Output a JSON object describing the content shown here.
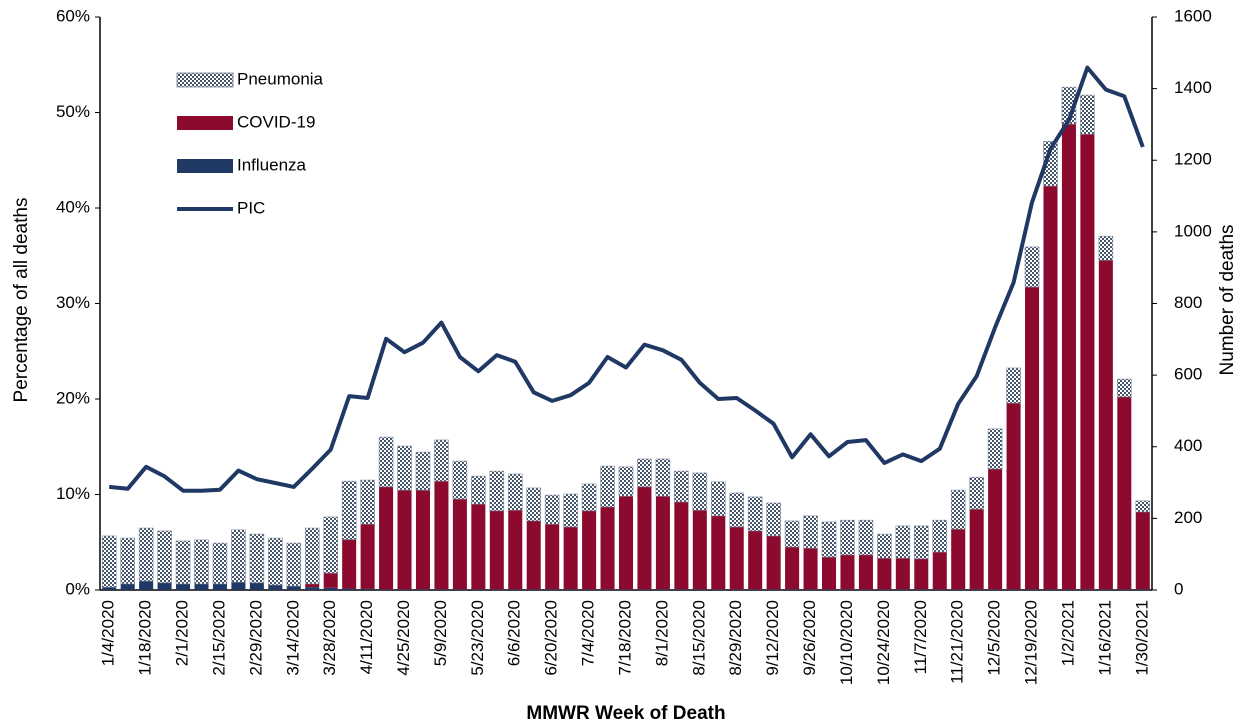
{
  "chart_data": {
    "type": "bar",
    "stacked": true,
    "x_label": "MMWR Week of Death",
    "y_label": "Percentage of all deaths",
    "y2_label": "Number of deaths",
    "categories": [
      "1/4/2020",
      null,
      "1/18/2020",
      null,
      "2/1/2020",
      null,
      "2/15/2020",
      null,
      "2/29/2020",
      null,
      "3/14/2020",
      null,
      "3/28/2020",
      null,
      "4/11/2020",
      null,
      "4/25/2020",
      null,
      "5/9/2020",
      null,
      "5/23/2020",
      null,
      "6/6/2020",
      null,
      "6/20/2020",
      null,
      "7/4/2020",
      null,
      "7/18/2020",
      null,
      "8/1/2020",
      null,
      "8/15/2020",
      null,
      "8/29/2020",
      null,
      "9/12/2020",
      null,
      "9/26/2020",
      null,
      "10/10/2020",
      null,
      "10/24/2020",
      null,
      "11/7/2020",
      null,
      "11/21/2020",
      null,
      "12/5/2020",
      null,
      "12/19/2020",
      null,
      "1/2/2021",
      null,
      "1/16/2021",
      null,
      "1/30/2021"
    ],
    "series": [
      {
        "name": "Influenza",
        "type": "bar",
        "axis": "y2",
        "color": "#1f3864",
        "values": [
          8,
          17,
          25,
          20,
          17,
          17,
          17,
          22,
          20,
          14,
          11,
          8,
          6,
          4,
          3,
          2,
          2,
          2,
          2,
          2,
          2,
          2,
          2,
          2,
          2,
          2,
          2,
          2,
          2,
          2,
          2,
          2,
          2,
          2,
          2,
          2,
          2,
          2,
          2,
          2,
          2,
          2,
          2,
          2,
          2,
          2,
          2,
          2,
          2,
          2,
          2,
          2,
          2,
          2,
          2,
          2,
          2
        ]
      },
      {
        "name": "COVID-19",
        "type": "bar",
        "axis": "y2",
        "color": "#8b0a2e",
        "values": [
          0,
          0,
          0,
          0,
          0,
          0,
          0,
          0,
          0,
          0,
          0,
          9,
          41,
          137,
          181,
          286,
          277,
          277,
          302,
          252,
          238,
          219,
          221,
          191,
          182,
          174,
          219,
          230,
          260,
          286,
          260,
          244,
          221,
          205,
          174,
          163,
          149,
          118,
          115,
          90,
          96,
          96,
          87,
          87,
          85,
          104,
          168,
          224,
          336,
          520,
          844,
          1126,
          1299,
          1271,
          919,
          537,
          216
        ]
      },
      {
        "name": "Pneumonia",
        "type": "bar",
        "axis": "y2",
        "color": "#44546a",
        "pattern": "checker",
        "values": [
          143,
          128,
          148,
          145,
          120,
          123,
          114,
          146,
          136,
          131,
          120,
          156,
          157,
          163,
          123,
          139,
          123,
          106,
          115,
          106,
          78,
          111,
          101,
          92,
          81,
          92,
          75,
          114,
          82,
          78,
          104,
          86,
          104,
          95,
          95,
          95,
          92,
          73,
          90,
          98,
          97,
          97,
          67,
          90,
          92,
          89,
          109,
          89,
          112,
          98,
          112,
          125,
          103,
          109,
          67,
          50,
          31
        ]
      },
      {
        "name": "PIC",
        "type": "line",
        "axis": "y",
        "color": "#1f3864",
        "values": [
          10.8,
          10.6,
          12.9,
          11.9,
          10.4,
          10.4,
          10.5,
          12.5,
          11.6,
          11.2,
          10.8,
          12.7,
          14.7,
          20.3,
          20.1,
          26.3,
          24.9,
          25.9,
          28.0,
          24.4,
          22.9,
          24.6,
          23.9,
          20.7,
          19.8,
          20.4,
          21.7,
          24.4,
          23.3,
          25.7,
          25.1,
          24.1,
          21.7,
          20.0,
          20.1,
          18.8,
          17.4,
          13.9,
          16.3,
          14.0,
          15.5,
          15.7,
          13.3,
          14.2,
          13.5,
          14.8,
          19.5,
          22.4,
          27.5,
          32.2,
          40.6,
          46.2,
          49.2,
          54.7,
          52.4,
          51.7,
          46.4
        ]
      }
    ],
    "ylim": [
      0,
      60
    ],
    "yticks": [
      {
        "value": 0,
        "label": "0%"
      },
      {
        "value": 10,
        "label": "10%"
      },
      {
        "value": 20,
        "label": "20%"
      },
      {
        "value": 30,
        "label": "30%"
      },
      {
        "value": 40,
        "label": "40%"
      },
      {
        "value": 50,
        "label": "50%"
      },
      {
        "value": 60,
        "label": "60%"
      }
    ],
    "y2lim": [
      0,
      1600
    ],
    "y2ticks": [
      0,
      200,
      400,
      600,
      800,
      1000,
      1200,
      1400,
      1600
    ],
    "grid": false,
    "legend": "upper-left"
  }
}
